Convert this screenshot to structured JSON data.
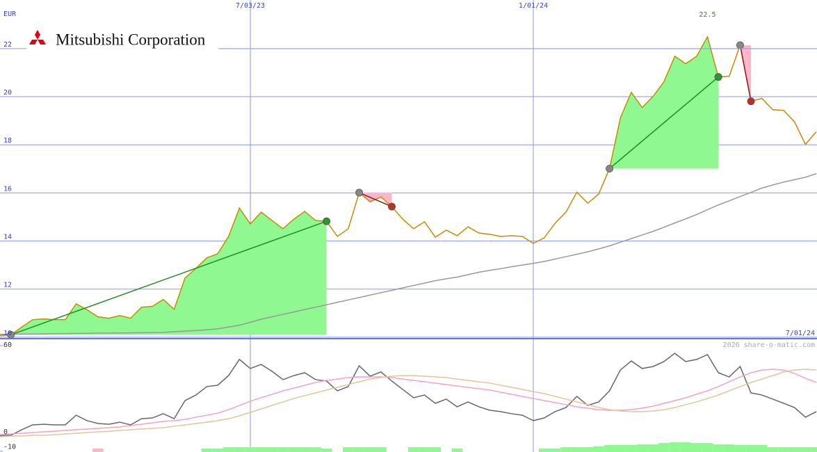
{
  "chart_data": [
    {
      "type": "line",
      "title": "Mitsubishi Corporation",
      "y_label": "EUR",
      "annotation": "22.5",
      "categories": [
        null,
        null,
        null,
        null,
        null,
        null,
        null,
        null,
        null,
        null,
        null,
        null,
        null,
        null,
        null,
        null,
        null,
        null,
        null,
        null,
        null,
        null,
        null,
        "7/03/23",
        null,
        null,
        null,
        null,
        null,
        null,
        null,
        null,
        null,
        null,
        null,
        null,
        null,
        null,
        null,
        null,
        null,
        null,
        null,
        null,
        null,
        null,
        null,
        null,
        null,
        "1/01/24",
        null,
        null,
        null,
        null,
        null,
        null,
        null,
        null,
        null,
        null,
        null,
        null,
        null,
        null,
        null,
        null,
        null,
        null,
        null,
        null,
        null,
        null,
        null,
        null,
        null,
        "7/01/24"
      ],
      "series": [
        {
          "color": "#cc8800",
          "values": [
            10.07,
            10.1,
            10.42,
            10.73,
            10.76,
            10.73,
            10.73,
            11.39,
            11.14,
            10.85,
            10.79,
            10.9,
            10.79,
            11.25,
            11.28,
            11.57,
            11.16,
            12.46,
            12.86,
            13.3,
            13.47,
            14.19,
            15.37,
            14.71,
            15.2,
            14.85,
            14.51,
            14.91,
            15.23,
            14.85,
            14.82,
            14.19,
            14.51,
            16.01,
            15.63,
            15.83,
            15.43,
            14.91,
            14.51,
            14.8,
            14.16,
            14.45,
            14.22,
            14.59,
            14.33,
            14.28,
            14.19,
            14.22,
            14.19,
            13.9,
            14.13,
            14.74,
            15.2,
            16.03,
            15.57,
            15.95,
            17.01,
            19.12,
            20.18,
            19.55,
            20.01,
            20.62,
            21.68,
            21.37,
            21.68,
            22.49,
            20.82,
            20.85,
            22.14,
            19.81,
            19.93,
            19.46,
            19.43,
            18.95,
            18.02,
            18.54
          ]
        },
        {
          "color": "#999999",
          "values": [
            10.12,
            10.12,
            10.13,
            10.13,
            10.14,
            10.15,
            10.15,
            10.16,
            10.16,
            10.17,
            10.17,
            10.18,
            10.18,
            10.19,
            10.19,
            10.2,
            10.23,
            10.25,
            10.28,
            10.31,
            10.35,
            10.42,
            10.5,
            10.62,
            10.75,
            10.85,
            10.95,
            11.05,
            11.15,
            11.25,
            11.35,
            11.45,
            11.55,
            11.65,
            11.75,
            11.85,
            11.95,
            12.05,
            12.15,
            12.25,
            12.35,
            12.43,
            12.5,
            12.6,
            12.7,
            12.78,
            12.85,
            12.93,
            13.0,
            13.07,
            13.15,
            13.25,
            13.35,
            13.45,
            13.55,
            13.67,
            13.8,
            13.95,
            14.1,
            14.25,
            14.4,
            14.57,
            14.75,
            14.92,
            15.1,
            15.3,
            15.5,
            15.67,
            15.85,
            16.02,
            16.2,
            16.33,
            16.45,
            16.55,
            16.65,
            16.8
          ]
        }
      ],
      "trades": [
        {
          "start": 1,
          "end": 30,
          "color": "#90f890",
          "line_color": "#228b22",
          "end_color": "#2a9a2a"
        },
        {
          "start": 33,
          "end": 36,
          "color": "#ffb6c8",
          "line_color": "#8b1a1a",
          "end_color": "#c0301e"
        },
        {
          "start": 56,
          "end": 66,
          "color": "#90f890",
          "line_color": "#228b22",
          "end_color": "#2a9a2a"
        },
        {
          "start": 68,
          "end": 69,
          "color": "#ffb6c8",
          "line_color": "#8b1a1a",
          "end_color": "#c0301e"
        }
      ],
      "ylim": [
        9.94,
        24.02
      ],
      "yticks": [
        10,
        12,
        14,
        16,
        18,
        20,
        22
      ],
      "grid": true
    },
    {
      "type": "line",
      "annotation": "2026 share-o-matic.com",
      "series": [
        {
          "color": "#666666",
          "values": [
            0.5,
            0.5,
            4.2,
            7.4,
            7.8,
            7.4,
            7.4,
            13.8,
            10.2,
            8.3,
            7.8,
            9.2,
            7.4,
            11.5,
            12.0,
            14.8,
            11.5,
            23.5,
            27.2,
            32.8,
            33.7,
            40.1,
            50.8,
            44.8,
            47.5,
            42.9,
            37.4,
            40.1,
            42.0,
            37.4,
            36.5,
            30.0,
            32.8,
            46.6,
            39.7,
            42.5,
            36.5,
            30.9,
            25.4,
            27.2,
            21.7,
            24.5,
            19.4,
            22.6,
            19.4,
            17.1,
            16.2,
            14.8,
            13.8,
            10.2,
            12.0,
            16.2,
            18.9,
            26.3,
            20.3,
            22.6,
            30.0,
            43.8,
            49.8,
            44.8,
            46.1,
            49.4,
            54.9,
            49.4,
            50.8,
            54.0,
            42.0,
            39.2,
            46.1,
            28.6,
            27.2,
            24.5,
            21.7,
            18.9,
            12.5,
            16.2
          ]
        },
        {
          "color": "#f4a0c8",
          "values": [
            0.9,
            1.4,
            1.8,
            2.3,
            2.8,
            3.2,
            3.7,
            4.2,
            4.6,
            5.1,
            5.5,
            6.0,
            6.9,
            7.8,
            8.8,
            9.7,
            10.2,
            11.1,
            12.5,
            13.8,
            15.2,
            17.5,
            20.3,
            23.1,
            25.4,
            27.7,
            30.0,
            31.8,
            33.7,
            35.5,
            36.9,
            37.8,
            38.8,
            39.2,
            39.2,
            39.2,
            38.8,
            37.8,
            36.9,
            36.0,
            35.1,
            34.1,
            33.2,
            32.3,
            31.4,
            30.5,
            29.1,
            27.7,
            26.3,
            24.9,
            23.5,
            22.2,
            20.8,
            19.4,
            18.5,
            17.5,
            17.1,
            17.1,
            17.5,
            18.5,
            19.8,
            21.7,
            23.5,
            25.4,
            27.7,
            30.0,
            32.8,
            36.0,
            39.2,
            42.0,
            43.8,
            44.3,
            43.8,
            41.5,
            38.3,
            35.5
          ]
        },
        {
          "color": "#e6c496",
          "values": [
            -0.5,
            0,
            0,
            0.5,
            0.5,
            0.9,
            1.4,
            1.8,
            2.3,
            2.8,
            3.2,
            3.7,
            4.2,
            4.6,
            5.1,
            5.5,
            6.5,
            7.4,
            8.3,
            9.2,
            10.2,
            11.5,
            13.4,
            15.7,
            18.0,
            20.3,
            22.6,
            24.9,
            26.8,
            28.6,
            30.5,
            32.3,
            34.1,
            36.0,
            37.8,
            38.8,
            39.7,
            40.1,
            40.1,
            39.7,
            39.2,
            38.8,
            37.8,
            36.9,
            36.0,
            35.1,
            33.7,
            32.3,
            30.9,
            29.5,
            28.1,
            26.3,
            24.5,
            22.6,
            20.8,
            18.9,
            17.5,
            16.6,
            16.2,
            16.2,
            16.6,
            17.5,
            18.9,
            20.8,
            22.6,
            24.9,
            27.2,
            30.0,
            32.8,
            35.5,
            37.8,
            40.1,
            42.5,
            43.8,
            44.3,
            43.8
          ]
        }
      ],
      "bars": [
        {
          "color": "#90f890",
          "values": [
            null,
            null,
            null,
            null,
            null,
            null,
            null,
            null,
            null,
            null,
            null,
            null,
            null,
            null,
            null,
            null,
            null,
            null,
            null,
            -8.3,
            -8.3,
            -7.4,
            -7.4,
            -7.4,
            -7.4,
            -7.4,
            -7.4,
            -7.4,
            -7.4,
            -7.4,
            -8.3,
            null,
            -7.4,
            -7.4,
            -7.4,
            -7.4,
            null,
            null,
            -7.4,
            -7.4,
            -7.4,
            null,
            -8.3,
            null,
            null,
            null,
            null,
            null,
            null,
            null,
            -8.3,
            -8.3,
            -7.4,
            -7.4,
            -7.4,
            -6.9,
            -6.0,
            -6.0,
            -6.0,
            -5.5,
            -5.5,
            -4.6,
            -4.2,
            -4.2,
            -4.6,
            -4.6,
            -5.5,
            -5.5,
            -6.0,
            -6.0,
            -6.0,
            -7.4,
            -7.4,
            -7.4,
            -7.4,
            -7.4
          ]
        },
        {
          "color": "#ffb6c8",
          "values": [
            null,
            null,
            null,
            null,
            null,
            null,
            null,
            null,
            null,
            -8.3,
            null,
            null,
            null,
            null,
            null,
            null,
            null,
            null,
            null,
            null,
            null,
            null,
            null,
            null,
            null,
            null,
            null,
            null,
            null,
            null,
            null,
            null,
            null,
            null,
            null,
            null,
            null,
            null,
            null,
            null,
            null,
            null,
            null,
            null,
            null,
            null,
            null,
            null,
            null,
            null,
            null,
            null,
            null,
            null,
            null,
            null,
            null,
            null,
            null,
            null,
            null,
            null,
            null,
            null,
            null,
            null,
            null,
            null,
            null,
            null,
            null,
            null,
            null,
            null,
            null,
            null
          ]
        }
      ],
      "ylim": [
        -10.6,
        64.6
      ],
      "yticks": [
        -10,
        0,
        60
      ]
    }
  ]
}
